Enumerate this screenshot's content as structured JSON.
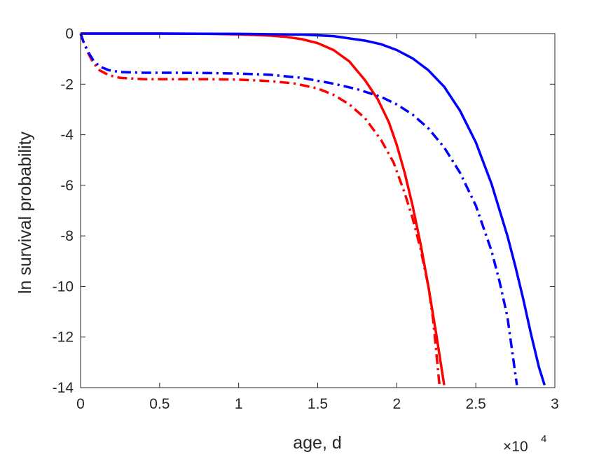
{
  "chart_data": {
    "type": "line",
    "xlabel": "age, d",
    "ylabel": "ln survival probability",
    "x_exponent_label": {
      "base": "×10",
      "power": "4"
    },
    "xlim": [
      0,
      30000
    ],
    "ylim": [
      -14,
      0
    ],
    "xticks": [
      0,
      5000,
      10000,
      15000,
      20000,
      25000,
      30000
    ],
    "xtick_labels": [
      "0",
      "0.5",
      "1",
      "1.5",
      "2",
      "2.5",
      "3"
    ],
    "yticks": [
      0,
      -2,
      -4,
      -6,
      -8,
      -10,
      -12,
      -14
    ],
    "ytick_labels": [
      "0",
      "-2",
      "-4",
      "-6",
      "-8",
      "-10",
      "-12",
      "-14"
    ],
    "grid": false,
    "series": [
      {
        "color": "#ff0000",
        "dash": "solid",
        "x": [
          0,
          2000,
          5000,
          8000,
          10000,
          12000,
          13000,
          14000,
          15000,
          16000,
          17000,
          18000,
          18800,
          19500,
          20000,
          20500,
          21000,
          21500,
          22000,
          22500,
          23000
        ],
        "y": [
          0,
          0,
          0,
          -0.01,
          -0.03,
          -0.08,
          -0.13,
          -0.22,
          -0.38,
          -0.65,
          -1.1,
          -1.85,
          -2.6,
          -3.5,
          -4.4,
          -5.5,
          -6.8,
          -8.3,
          -10.0,
          -11.9,
          -13.9
        ]
      },
      {
        "color": "#ff0000",
        "dash": "dashdot",
        "x": [
          0,
          200,
          500,
          800,
          1200,
          1800,
          2500,
          4000,
          6000,
          8000,
          10000,
          12000,
          13500,
          15000,
          16000,
          17000,
          18000,
          19000,
          19800,
          20500,
          21000,
          21500,
          22000,
          22300,
          22700
        ],
        "y": [
          0,
          -0.35,
          -0.8,
          -1.15,
          -1.45,
          -1.65,
          -1.75,
          -1.8,
          -1.8,
          -1.8,
          -1.82,
          -1.88,
          -1.97,
          -2.17,
          -2.42,
          -2.8,
          -3.35,
          -4.2,
          -5.1,
          -6.3,
          -7.3,
          -8.5,
          -10.0,
          -11.3,
          -13.9
        ]
      },
      {
        "color": "#0000ff",
        "dash": "solid",
        "x": [
          0,
          5000,
          10000,
          14000,
          16000,
          18000,
          19000,
          20000,
          21000,
          22000,
          23000,
          24000,
          25000,
          26000,
          27000,
          27500,
          28000,
          28500,
          29000,
          29350
        ],
        "y": [
          0,
          0,
          -0.01,
          -0.04,
          -0.1,
          -0.28,
          -0.42,
          -0.65,
          -0.98,
          -1.45,
          -2.1,
          -3.05,
          -4.3,
          -5.95,
          -8.0,
          -9.2,
          -10.5,
          -11.9,
          -13.2,
          -13.9
        ]
      },
      {
        "color": "#0000ff",
        "dash": "dashdot",
        "x": [
          0,
          200,
          500,
          800,
          1200,
          1800,
          2500,
          4000,
          6000,
          8000,
          10000,
          12000,
          14000,
          16000,
          17500,
          19000,
          20000,
          21000,
          22000,
          23000,
          24000,
          25000,
          26000,
          26500,
          27000,
          27600
        ],
        "y": [
          0,
          -0.35,
          -0.75,
          -1.05,
          -1.3,
          -1.45,
          -1.52,
          -1.55,
          -1.55,
          -1.56,
          -1.58,
          -1.63,
          -1.75,
          -1.98,
          -2.2,
          -2.5,
          -2.8,
          -3.2,
          -3.75,
          -4.5,
          -5.5,
          -6.8,
          -8.6,
          -9.8,
          -11.2,
          -13.9
        ]
      }
    ]
  }
}
